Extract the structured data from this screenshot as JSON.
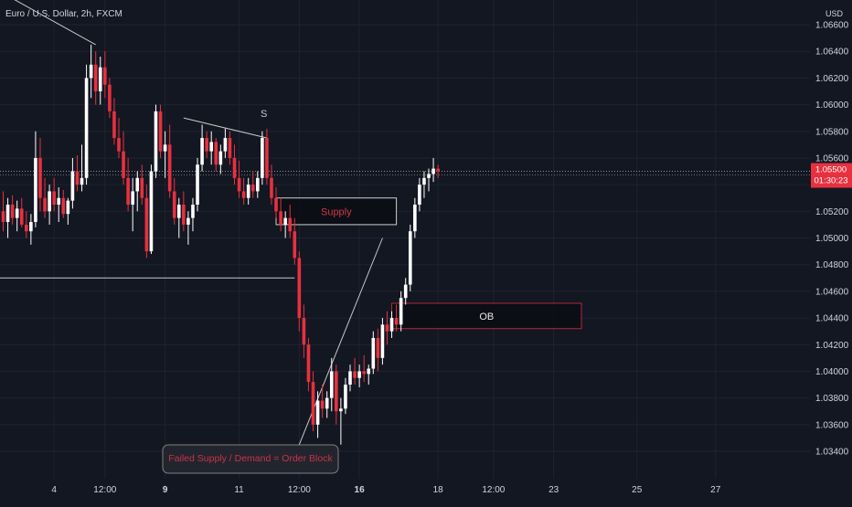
{
  "header": {
    "symbol_title": "Euro / U.S. Dollar, 2h, FXCM"
  },
  "price_axis": {
    "currency": "USD",
    "last_price": "1.05500",
    "countdown": "01:30:23"
  },
  "annotations": {
    "supply_label": "Supply",
    "ob_label": "OB",
    "s_label": "S",
    "callout": "Failed Supply / Demand = Order Block"
  },
  "colors": {
    "background": "#131722",
    "bull": "#ffffff",
    "bear": "#e8303f",
    "grid": "#1f2330",
    "axis_text": "#d1d4dc",
    "price_tag": "#e8303f",
    "supply_border": "#cfcfcf",
    "ob_border": "#b2283a",
    "callout_text": "#c9324a"
  },
  "chart_data": {
    "type": "candlestick",
    "title": "Euro / U.S. Dollar, 2h, FXCM",
    "y_ticks": [
      "1.06600",
      "1.06400",
      "1.06200",
      "1.06000",
      "1.05800",
      "1.05600",
      "1.05400",
      "1.05200",
      "1.05000",
      "1.04800",
      "1.04600",
      "1.04400",
      "1.04200",
      "1.04000",
      "1.03800",
      "1.03600",
      "1.03400"
    ],
    "ylim": [
      1.0328,
      1.0672
    ],
    "x_ticks": [
      {
        "label": "4",
        "bold": false,
        "bar": 11
      },
      {
        "label": "12:00",
        "bold": false,
        "bar": 22
      },
      {
        "label": "9",
        "bold": true,
        "bar": 35
      },
      {
        "label": "11",
        "bold": false,
        "bar": 51
      },
      {
        "label": "12:00",
        "bold": false,
        "bar": 64
      },
      {
        "label": "16",
        "bold": true,
        "bar": 77
      },
      {
        "label": "18",
        "bold": false,
        "bar": 94
      },
      {
        "label": "12:00",
        "bold": false,
        "bar": 106
      },
      {
        "label": "23",
        "bold": false,
        "bar": 119
      },
      {
        "label": "25",
        "bold": false,
        "bar": 137
      },
      {
        "label": "27",
        "bold": false,
        "bar": 154
      }
    ],
    "candles": [
      [
        1.052,
        1.0535,
        1.0505,
        1.0512
      ],
      [
        1.0512,
        1.053,
        1.05,
        1.0525
      ],
      [
        1.0525,
        1.0532,
        1.051,
        1.0515
      ],
      [
        1.0515,
        1.0528,
        1.0505,
        1.0522
      ],
      [
        1.0522,
        1.053,
        1.0508,
        1.051
      ],
      [
        1.051,
        1.052,
        1.05,
        1.0505
      ],
      [
        1.0505,
        1.0518,
        1.0495,
        1.0512
      ],
      [
        1.0512,
        1.058,
        1.0508,
        1.056
      ],
      [
        1.056,
        1.0575,
        1.052,
        1.053
      ],
      [
        1.053,
        1.0545,
        1.0515,
        1.052
      ],
      [
        1.052,
        1.054,
        1.051,
        1.0535
      ],
      [
        1.0535,
        1.0545,
        1.052,
        1.0525
      ],
      [
        1.0525,
        1.0538,
        1.0512,
        1.053
      ],
      [
        1.053,
        1.0536,
        1.0515,
        1.0518
      ],
      [
        1.0518,
        1.053,
        1.051,
        1.0528
      ],
      [
        1.0528,
        1.056,
        1.0522,
        1.055
      ],
      [
        1.055,
        1.0562,
        1.0535,
        1.054
      ],
      [
        1.054,
        1.057,
        1.0535,
        1.0545
      ],
      [
        1.0545,
        1.063,
        1.054,
        1.062
      ],
      [
        1.062,
        1.0645,
        1.0605,
        1.063
      ],
      [
        1.063,
        1.064,
        1.06,
        1.061
      ],
      [
        1.061,
        1.0636,
        1.06,
        1.0628
      ],
      [
        1.0628,
        1.064,
        1.0605,
        1.0615
      ],
      [
        1.0615,
        1.062,
        1.059,
        1.0595
      ],
      [
        1.0595,
        1.0605,
        1.057,
        1.0575
      ],
      [
        1.0575,
        1.059,
        1.056,
        1.0565
      ],
      [
        1.0565,
        1.058,
        1.054,
        1.0545
      ],
      [
        1.0545,
        1.056,
        1.052,
        1.0525
      ],
      [
        1.0525,
        1.0545,
        1.0505,
        1.0535
      ],
      [
        1.0535,
        1.055,
        1.052,
        1.0545
      ],
      [
        1.0545,
        1.0555,
        1.0525,
        1.053
      ],
      [
        1.053,
        1.054,
        1.0485,
        1.049
      ],
      [
        1.049,
        1.0555,
        1.0488,
        1.055
      ],
      [
        1.055,
        1.06,
        1.0545,
        1.0595
      ],
      [
        1.0595,
        1.06,
        1.056,
        1.0565
      ],
      [
        1.0565,
        1.058,
        1.0545,
        1.057
      ],
      [
        1.057,
        1.0585,
        1.053,
        1.0535
      ],
      [
        1.0535,
        1.0545,
        1.051,
        1.0515
      ],
      [
        1.0515,
        1.053,
        1.05,
        1.0525
      ],
      [
        1.0525,
        1.0535,
        1.0505,
        1.051
      ],
      [
        1.051,
        1.052,
        1.0495,
        1.0515
      ],
      [
        1.0515,
        1.053,
        1.0505,
        1.0525
      ],
      [
        1.0525,
        1.056,
        1.052,
        1.0555
      ],
      [
        1.0555,
        1.0585,
        1.055,
        1.0575
      ],
      [
        1.0575,
        1.058,
        1.056,
        1.0565
      ],
      [
        1.0565,
        1.058,
        1.0555,
        1.0572
      ],
      [
        1.0572,
        1.0575,
        1.055,
        1.0555
      ],
      [
        1.0555,
        1.057,
        1.0548,
        1.0565
      ],
      [
        1.0565,
        1.0582,
        1.056,
        1.0575
      ],
      [
        1.0575,
        1.058,
        1.0555,
        1.056
      ],
      [
        1.056,
        1.057,
        1.054,
        1.0545
      ],
      [
        1.0545,
        1.0558,
        1.053,
        1.0535
      ],
      [
        1.0535,
        1.0545,
        1.0525,
        1.053
      ],
      [
        1.053,
        1.0545,
        1.0525,
        1.054
      ],
      [
        1.054,
        1.055,
        1.053,
        1.0535
      ],
      [
        1.0535,
        1.055,
        1.053,
        1.0545
      ],
      [
        1.0545,
        1.058,
        1.054,
        1.0575
      ],
      [
        1.0575,
        1.0582,
        1.054,
        1.0545
      ],
      [
        1.0545,
        1.0555,
        1.0525,
        1.053
      ],
      [
        1.053,
        1.0538,
        1.0515,
        1.052
      ],
      [
        1.052,
        1.053,
        1.0505,
        1.051
      ],
      [
        1.051,
        1.052,
        1.05,
        1.0515
      ],
      [
        1.0515,
        1.0525,
        1.05,
        1.0505
      ],
      [
        1.0505,
        1.0515,
        1.048,
        1.0485
      ],
      [
        1.0485,
        1.049,
        1.043,
        1.044
      ],
      [
        1.044,
        1.045,
        1.041,
        1.042
      ],
      [
        1.042,
        1.0425,
        1.0385,
        1.0392
      ],
      [
        1.0392,
        1.04,
        1.0355,
        1.036
      ],
      [
        1.036,
        1.0385,
        1.035,
        1.0378
      ],
      [
        1.0378,
        1.039,
        1.0365,
        1.0372
      ],
      [
        1.0372,
        1.0385,
        1.0365,
        1.038
      ],
      [
        1.038,
        1.041,
        1.037,
        1.04
      ],
      [
        1.04,
        1.0405,
        1.036,
        1.037
      ],
      [
        1.037,
        1.038,
        1.0345,
        1.0372
      ],
      [
        1.0372,
        1.0395,
        1.0368,
        1.039
      ],
      [
        1.039,
        1.0405,
        1.0385,
        1.04
      ],
      [
        1.04,
        1.041,
        1.039,
        1.0395
      ],
      [
        1.0395,
        1.0405,
        1.0388,
        1.04
      ],
      [
        1.04,
        1.0412,
        1.0392,
        1.0398
      ],
      [
        1.0398,
        1.0405,
        1.039,
        1.0402
      ],
      [
        1.0402,
        1.043,
        1.0398,
        1.0425
      ],
      [
        1.0425,
        1.0432,
        1.04,
        1.041
      ],
      [
        1.041,
        1.044,
        1.0405,
        1.0435
      ],
      [
        1.0435,
        1.0445,
        1.042,
        1.043
      ],
      [
        1.043,
        1.0445,
        1.0425,
        1.044
      ],
      [
        1.044,
        1.045,
        1.043,
        1.0435
      ],
      [
        1.0435,
        1.046,
        1.043,
        1.0455
      ],
      [
        1.0455,
        1.047,
        1.045,
        1.0465
      ],
      [
        1.0465,
        1.051,
        1.046,
        1.0505
      ],
      [
        1.0505,
        1.053,
        1.05,
        1.0525
      ],
      [
        1.0525,
        1.0545,
        1.052,
        1.054
      ],
      [
        1.054,
        1.055,
        1.053,
        1.0545
      ],
      [
        1.0545,
        1.0552,
        1.0535,
        1.0548
      ],
      [
        1.0548,
        1.056,
        1.0542,
        1.0552
      ],
      [
        1.0552,
        1.0555,
        1.0545,
        1.055
      ]
    ],
    "lines": [
      {
        "name": "downtrend-line",
        "from": [
          -6,
          1.0695
        ],
        "to": [
          20,
          1.0645
        ],
        "color": "#c8c8c8"
      },
      {
        "name": "s-trend-line",
        "from": [
          39,
          1.059
        ],
        "to": [
          57,
          1.0575
        ],
        "color": "#c8c8c8"
      },
      {
        "name": "support-line",
        "from": [
          -6,
          1.047
        ],
        "to": [
          63,
          1.047
        ],
        "color": "#c8c8c8"
      },
      {
        "name": "callout-arrow-line",
        "from": [
          64,
          1.0345
        ],
        "to": [
          82,
          1.05
        ],
        "color": "#c8c8c8"
      }
    ],
    "zones": [
      {
        "name": "supply-zone",
        "from_bar": 59,
        "to_bar": 85,
        "top": 1.053,
        "bottom": 1.051,
        "border": "#cfcfcf",
        "label_key": "supply_label"
      },
      {
        "name": "ob-zone",
        "from_bar": 84,
        "to_bar": 125,
        "top": 1.0451,
        "bottom": 1.0432,
        "border": "#b2283a",
        "label_key": "ob_label"
      }
    ],
    "last_price_value": 1.055
  }
}
